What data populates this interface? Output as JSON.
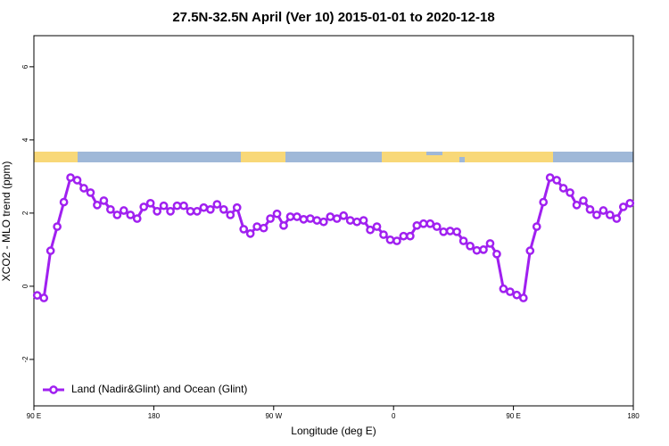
{
  "chart_data": {
    "type": "line",
    "title": "27.5N-32.5N April (Ver 10)   2015-01-01 to 2020-12-18",
    "xlabel": "Longitude (deg E)",
    "ylabel": "XCO2 - MLO trend (ppm)",
    "x": [
      92.5,
      97.5,
      102.5,
      107.5,
      112.5,
      117.5,
      122.5,
      127.5,
      132.5,
      137.5,
      142.5,
      147.5,
      152.5,
      157.5,
      162.5,
      167.5,
      172.5,
      177.5,
      182.5,
      187.5,
      192.5,
      197.5,
      202.5,
      207.5,
      212.5,
      217.5,
      222.5,
      227.5,
      232.5,
      237.5,
      242.5,
      247.5,
      252.5,
      257.5,
      262.5,
      267.5,
      272.5,
      277.5,
      282.5,
      287.5,
      292.5,
      297.5,
      302.5,
      307.5,
      312.5,
      317.5,
      322.5,
      327.5,
      332.5,
      337.5,
      342.5,
      347.5,
      352.5,
      357.5,
      362.5,
      367.5,
      372.5,
      377.5,
      382.5,
      387.5,
      392.5,
      397.5,
      402.5,
      407.5,
      412.5,
      417.5,
      422.5,
      427.5,
      432.5,
      437.5,
      442.5,
      447.5,
      452.5,
      457.5,
      462.5,
      467.5,
      472.5,
      477.5,
      482.5,
      487.5,
      492.5,
      497.5,
      502.5,
      507.5,
      512.5,
      517.5,
      522.5,
      527.5,
      532.5,
      537.5
    ],
    "series": [
      {
        "name": "Land (Nadir&Glint) and Ocean (Glint)",
        "color": "#a020f0",
        "values": [
          -0.25,
          -0.32,
          0.97,
          1.63,
          2.3,
          2.97,
          2.9,
          2.68,
          2.56,
          2.22,
          2.34,
          2.1,
          1.95,
          2.07,
          1.95,
          1.85,
          2.17,
          2.27,
          2.05,
          2.2,
          2.05,
          2.2,
          2.2,
          2.05,
          2.05,
          2.15,
          2.1,
          2.24,
          2.1,
          1.95,
          2.15,
          1.56,
          1.44,
          1.63,
          1.59,
          1.85,
          1.98,
          1.66,
          1.9,
          1.9,
          1.83,
          1.85,
          1.8,
          1.76,
          1.9,
          1.85,
          1.93,
          1.8,
          1.76,
          1.8,
          1.54,
          1.63,
          1.41,
          1.27,
          1.24,
          1.37,
          1.37,
          1.66,
          1.71,
          1.71,
          1.63,
          1.49,
          1.51,
          1.49,
          1.24,
          1.1,
          0.98,
          1.0,
          1.17,
          0.88,
          -0.07,
          -0.15,
          -0.24,
          -0.32,
          0.97,
          1.63,
          2.3,
          2.97,
          2.9,
          2.68,
          2.56,
          2.22,
          2.34,
          2.1,
          1.95,
          2.07,
          1.95,
          1.85,
          2.17,
          2.27
        ]
      }
    ],
    "xlim": [
      90,
      540
    ],
    "xticks": [
      {
        "value": 90,
        "label": "90 E"
      },
      180,
      {
        "value": 270,
        "label": "90 W"
      },
      {
        "value": 360,
        "label": "0"
      },
      {
        "value": 450,
        "label": "90 E"
      },
      {
        "value": 540,
        "label": "180"
      }
    ],
    "ylim": [
      -3.27,
      6.85
    ],
    "yticks": [
      -2,
      0,
      2,
      4,
      6
    ],
    "legend": "bottom-left"
  }
}
